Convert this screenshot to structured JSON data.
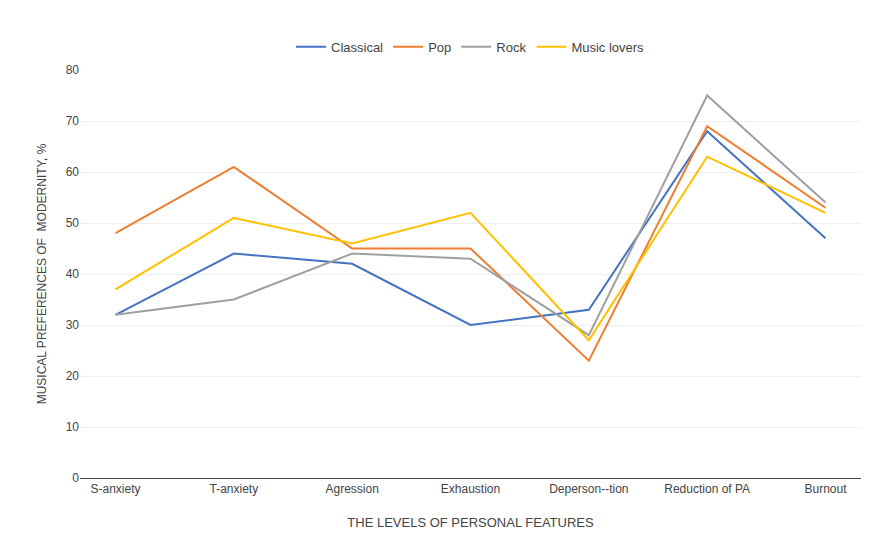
{
  "chart_data": {
    "type": "line",
    "categories": [
      "S-anxiety",
      "T-anxiety",
      "Agression",
      "Exhaustion",
      "Deperson--tion",
      "Reduction of PA",
      "Burnout"
    ],
    "series": [
      {
        "name": "Classical",
        "color": "#4472C4",
        "values": [
          32,
          44,
          42,
          30,
          33,
          68,
          47
        ]
      },
      {
        "name": "Pop",
        "color": "#ED7D31",
        "values": [
          48,
          61,
          45,
          45,
          23,
          69,
          53
        ]
      },
      {
        "name": "Rock",
        "color": "#A0A0A0",
        "values": [
          32,
          35,
          44,
          43,
          28,
          75,
          54
        ]
      },
      {
        "name": "Music lovers",
        "color": "#FFC000",
        "values": [
          37,
          51,
          46,
          52,
          27,
          63,
          52
        ]
      }
    ],
    "ylabel": "MUSICAL PREFERENCES OF  MODERNITY, %",
    "xlabel": "THE LEVELS OF PERSONAL FEATURES",
    "ylim": [
      0,
      80
    ],
    "yticks": [
      0,
      10,
      20,
      30,
      40,
      50,
      60,
      70,
      80
    ],
    "grid": true,
    "legend": "top"
  }
}
